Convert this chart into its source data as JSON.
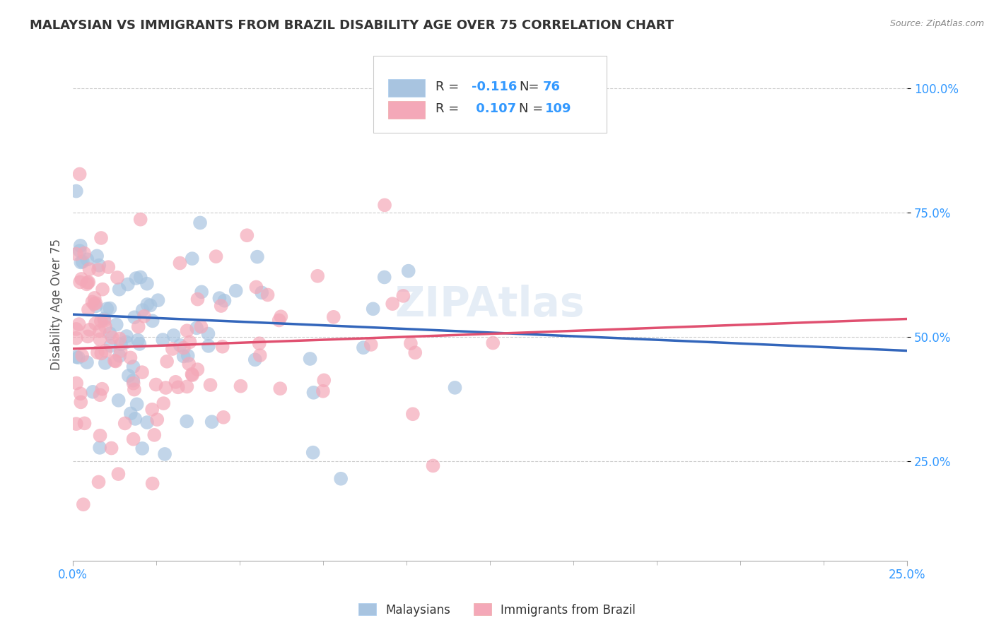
{
  "title": "MALAYSIAN VS IMMIGRANTS FROM BRAZIL DISABILITY AGE OVER 75 CORRELATION CHART",
  "source": "Source: ZipAtlas.com",
  "ylabel": "Disability Age Over 75",
  "legend_label_1": "Malaysians",
  "legend_label_2": "Immigrants from Brazil",
  "R1": -0.116,
  "N1": 76,
  "R2": 0.107,
  "N2": 109,
  "color_blue": "#A8C4E0",
  "color_pink": "#F4A8B8",
  "color_blue_line": "#3366BB",
  "color_pink_line": "#E05070",
  "color_axis_tick": "#3399FF",
  "grid_color": "#CCCCCC",
  "background_color": "#FFFFFF",
  "title_color": "#333333",
  "xmin": 0.0,
  "xmax": 0.25,
  "ymin": 0.05,
  "ymax": 1.08,
  "ytick_positions": [
    0.25,
    0.5,
    0.75,
    1.0
  ],
  "ytick_labels": [
    "25.0%",
    "50.0%",
    "75.0%",
    "100.0%"
  ],
  "blue_trend_x0": 0.0,
  "blue_trend_y0": 0.545,
  "blue_trend_x1": 0.25,
  "blue_trend_y1": 0.472,
  "pink_trend_x0": 0.0,
  "pink_trend_y0": 0.476,
  "pink_trend_x1": 0.25,
  "pink_trend_y1": 0.536
}
